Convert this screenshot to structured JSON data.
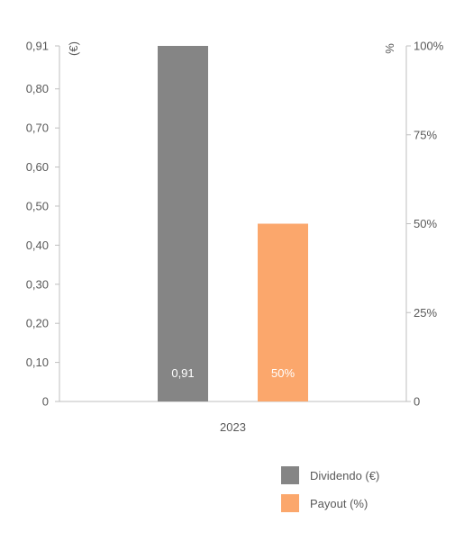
{
  "chart_data": {
    "type": "bar",
    "categories": [
      "2023"
    ],
    "series": [
      {
        "name": "Dividendo (€)",
        "values": [
          0.91
        ],
        "color": "#858585",
        "axis": "left",
        "data_label": "0,91"
      },
      {
        "name": "Payout (%)",
        "values": [
          50
        ],
        "color": "#fba76c",
        "axis": "right",
        "data_label": "50%"
      }
    ],
    "y_left": {
      "unit": "(€)",
      "range": [
        0,
        0.91
      ],
      "ticks": [
        0,
        0.1,
        0.2,
        0.3,
        0.4,
        0.5,
        0.6,
        0.7,
        0.8,
        0.91
      ],
      "tick_labels": [
        "0",
        "0,10",
        "0,20",
        "0,30",
        "0,40",
        "0,50",
        "0,60",
        "0,70",
        "0,80",
        "0,91"
      ]
    },
    "y_right": {
      "unit": "%",
      "range": [
        0,
        100
      ],
      "ticks": [
        0,
        25,
        50,
        75,
        100
      ],
      "tick_labels": [
        "0",
        "25%",
        "50%",
        "75%",
        "100%"
      ]
    },
    "grid": false,
    "legend": "bottom-right"
  }
}
